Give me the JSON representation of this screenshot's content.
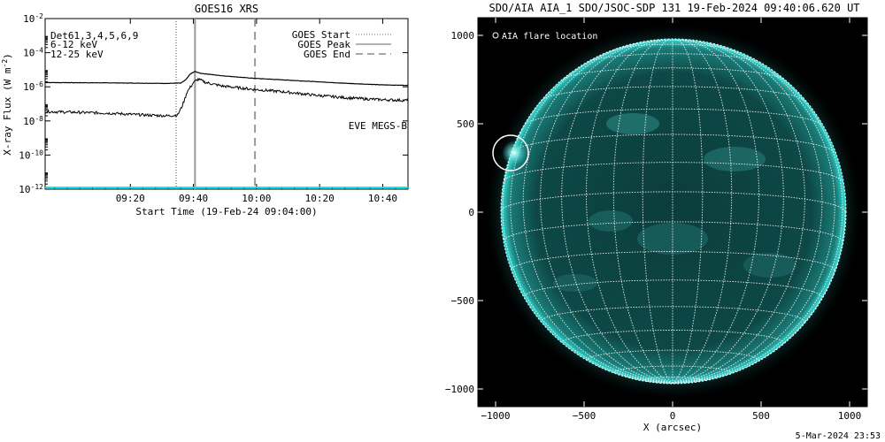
{
  "colors": {
    "background": "#ffffff",
    "axis": "#000000",
    "trace": "#000000",
    "eve": "#00e5ee",
    "band_6_12": "#dd00dd",
    "band_12_25": "#00dd00",
    "sun_disk": "#08403f",
    "sun_limb": "#2fd6d0",
    "grid": "#ffffff"
  },
  "chart_data": [
    {
      "type": "line",
      "title": "GOES16 XRS",
      "xlabel": "Start Time (19-Feb-24 09:04:00)",
      "ylabel": "X-ray Flux (W m^-2)",
      "ylabel_main": "X-ray Flux (W m",
      "ylabel_sup": "-2",
      "ylabel_close": ")",
      "yscale": "log",
      "xlim_minutes": [
        0,
        75
      ],
      "ylim_exp": [
        -12,
        -2
      ],
      "xticks": [
        {
          "minutes": 16,
          "label": "09:20"
        },
        {
          "minutes": 36,
          "label": "09:40"
        },
        {
          "minutes": 56,
          "label": "10:00"
        },
        {
          "minutes": 76,
          "label": "10:20"
        },
        {
          "minutes": 96,
          "label": "10:40"
        }
      ],
      "yticks": [
        {
          "exp": -12,
          "label": "10",
          "sup": "-12"
        },
        {
          "exp": -10,
          "label": "10",
          "sup": "-10"
        },
        {
          "exp": -8,
          "label": "10",
          "sup": "-8"
        },
        {
          "exp": -6,
          "label": "10",
          "sup": "-6"
        },
        {
          "exp": -4,
          "label": "10",
          "sup": "-4"
        },
        {
          "exp": -2,
          "label": "10",
          "sup": "-2"
        }
      ],
      "top_left_labels": [
        {
          "text": "Det61,3,4,5,6,9",
          "color": "#000000"
        },
        {
          "text": "6-12 keV",
          "color": "#dd00dd"
        },
        {
          "text": "12-25 keV",
          "color": "#00dd00"
        }
      ],
      "legend": [
        {
          "label": "GOES Start",
          "style": "dotted"
        },
        {
          "label": "GOES Peak",
          "style": "solid"
        },
        {
          "label": "GOES End",
          "style": "dashed"
        }
      ],
      "vlines": [
        {
          "name": "GOES Start",
          "minutes": 30.5,
          "style": "dotted"
        },
        {
          "name": "GOES Peak",
          "minutes": 36.5,
          "style": "solid"
        },
        {
          "name": "GOES End",
          "minutes": 55.5,
          "style": "dashed"
        }
      ],
      "eve_label": "EVE MEGS-B",
      "series": [
        {
          "style": "long channel",
          "points_minutes_exp": [
            [
              -11,
              -5.75
            ],
            [
              0,
              -5.76
            ],
            [
              10,
              -5.77
            ],
            [
              20,
              -5.79
            ],
            [
              28,
              -5.8
            ],
            [
              32,
              -5.78
            ],
            [
              33.5,
              -5.6
            ],
            [
              35,
              -5.25
            ],
            [
              36.5,
              -5.1
            ],
            [
              38,
              -5.2
            ],
            [
              45,
              -5.35
            ],
            [
              55,
              -5.5
            ],
            [
              65,
              -5.6
            ],
            [
              75,
              -5.7
            ],
            [
              85,
              -5.8
            ],
            [
              95,
              -5.88
            ],
            [
              104,
              -5.92
            ]
          ]
        },
        {
          "style": "short channel",
          "points_minutes_exp": [
            [
              -11,
              -7.45
            ],
            [
              0,
              -7.5
            ],
            [
              10,
              -7.55
            ],
            [
              20,
              -7.65
            ],
            [
              28,
              -7.7
            ],
            [
              31,
              -7.65
            ],
            [
              32.5,
              -7.1
            ],
            [
              34,
              -6.3
            ],
            [
              36,
              -5.75
            ],
            [
              37.5,
              -5.55
            ],
            [
              40,
              -5.75
            ],
            [
              45,
              -5.95
            ],
            [
              55,
              -6.15
            ],
            [
              65,
              -6.3
            ],
            [
              75,
              -6.5
            ],
            [
              85,
              -6.65
            ],
            [
              95,
              -6.75
            ],
            [
              104,
              -6.8
            ]
          ]
        },
        {
          "style": "eve baseline",
          "points_minutes_exp": [
            [
              -11,
              -11.9
            ],
            [
              104,
              -11.9
            ]
          ]
        }
      ]
    },
    {
      "type": "image",
      "title": "SDO/AIA AIA_1 SDO/JSOC-SDP 131 19-Feb-2024 09:40:06.620 UT",
      "xlabel": "X (arcsec)",
      "xlim": [
        -1100,
        1100
      ],
      "ylim": [
        -1100,
        1100
      ],
      "xticks": [
        -1000,
        -500,
        0,
        500,
        1000
      ],
      "yticks": [
        -1000,
        -500,
        0,
        500,
        1000
      ],
      "solar_radius_arcsec": 975,
      "grid_spacing_deg": 10,
      "legend": [
        {
          "label": "AIA flare location",
          "marker": "circle"
        }
      ],
      "flare_location_arcsec": [
        -915,
        335
      ],
      "flare_circle_radius_arcsec": 100,
      "footer": "5-Mar-2024 23:53"
    }
  ]
}
